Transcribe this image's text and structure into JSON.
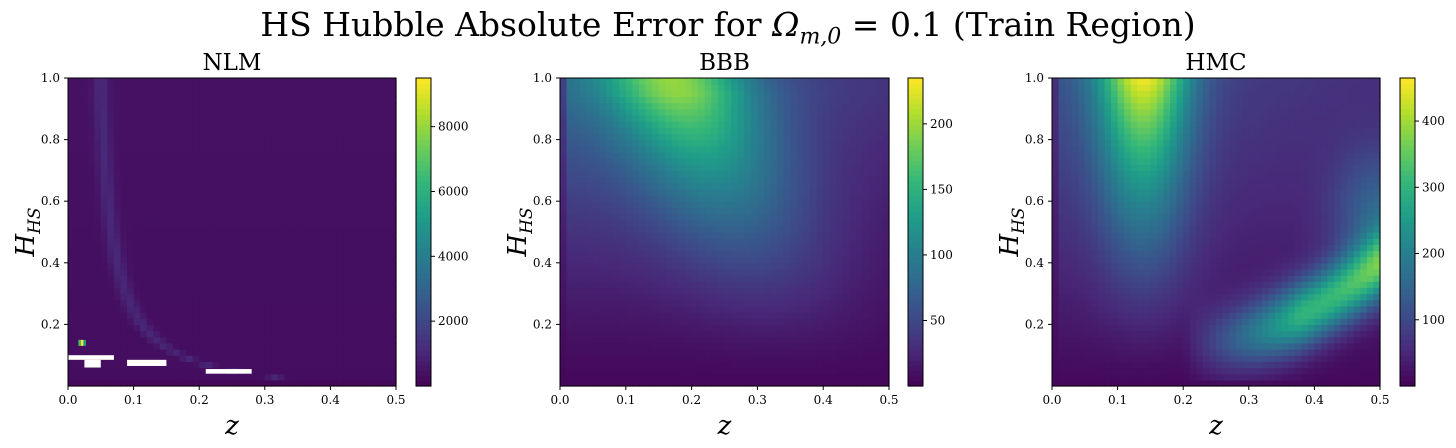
{
  "figure": {
    "title_prefix": "HS Hubble Absolute Error for ",
    "title_math_symbol": "Ω",
    "title_math_sub": "m,0",
    "title_math_rest": " = 0.1",
    "title_suffix": " (Train Region)"
  },
  "chart_data": [
    {
      "type": "heatmap",
      "title": "NLM",
      "xlabel": "z",
      "ylabel": "H",
      "ylabel_sub": "HS",
      "xlim": [
        0,
        0.5
      ],
      "ylim": [
        0,
        1
      ],
      "xticks": [
        "0.0",
        "0.1",
        "0.2",
        "0.3",
        "0.4",
        "0.5"
      ],
      "yticks": [
        "0.2",
        "0.4",
        "0.6",
        "0.8",
        "1.0"
      ],
      "colormap": "viridis",
      "colorbar": {
        "min": 0,
        "max": 9500,
        "ticks": [
          "2000",
          "4000",
          "6000",
          "8000"
        ],
        "tick_values": [
          2000,
          4000,
          6000,
          8000
        ]
      },
      "description_values": {
        "background_level": 300,
        "ridge_level": 900,
        "hot_spot": {
          "z": 0.022,
          "H": 0.14,
          "value": 9500
        }
      },
      "missing_regions": [
        {
          "z": [
            0.0,
            0.07
          ],
          "H": [
            0.085,
            0.1
          ]
        },
        {
          "z": [
            0.025,
            0.05
          ],
          "H": [
            0.06,
            0.085
          ]
        },
        {
          "z": [
            0.09,
            0.15
          ],
          "H": [
            0.065,
            0.085
          ]
        },
        {
          "z": [
            0.21,
            0.28
          ],
          "H": [
            0.04,
            0.055
          ]
        }
      ]
    },
    {
      "type": "heatmap",
      "title": "BBB",
      "xlabel": "z",
      "ylabel": "H",
      "ylabel_sub": "HS",
      "xlim": [
        0,
        0.5
      ],
      "ylim": [
        0,
        1
      ],
      "xticks": [
        "0.0",
        "0.1",
        "0.2",
        "0.3",
        "0.4",
        "0.5"
      ],
      "yticks": [
        "0.2",
        "0.4",
        "0.6",
        "0.8",
        "1.0"
      ],
      "colormap": "viridis",
      "colorbar": {
        "min": 0,
        "max": 235,
        "ticks": [
          "50",
          "100",
          "150",
          "200"
        ],
        "tick_values": [
          50,
          100,
          150,
          200
        ]
      },
      "description_values": {
        "peak": {
          "z": 0.18,
          "H": 0.95,
          "value": 230
        }
      }
    },
    {
      "type": "heatmap",
      "title": "HMC",
      "xlabel": "z",
      "ylabel": "H",
      "ylabel_sub": "HS",
      "xlim": [
        0,
        0.5
      ],
      "ylim": [
        0,
        1
      ],
      "xticks": [
        "0.0",
        "0.1",
        "0.2",
        "0.3",
        "0.4",
        "0.5"
      ],
      "yticks": [
        "0.2",
        "0.4",
        "0.6",
        "0.8",
        "1.0"
      ],
      "colormap": "viridis",
      "colorbar": {
        "min": 0,
        "max": 465,
        "ticks": [
          "100",
          "200",
          "300",
          "400"
        ],
        "tick_values": [
          100,
          200,
          300,
          400
        ]
      },
      "description_values": {
        "peak": {
          "z": 0.14,
          "H": 0.95,
          "value": 460
        },
        "secondary_peak": {
          "z": 0.5,
          "H": 0.55,
          "value": 380
        }
      }
    }
  ]
}
